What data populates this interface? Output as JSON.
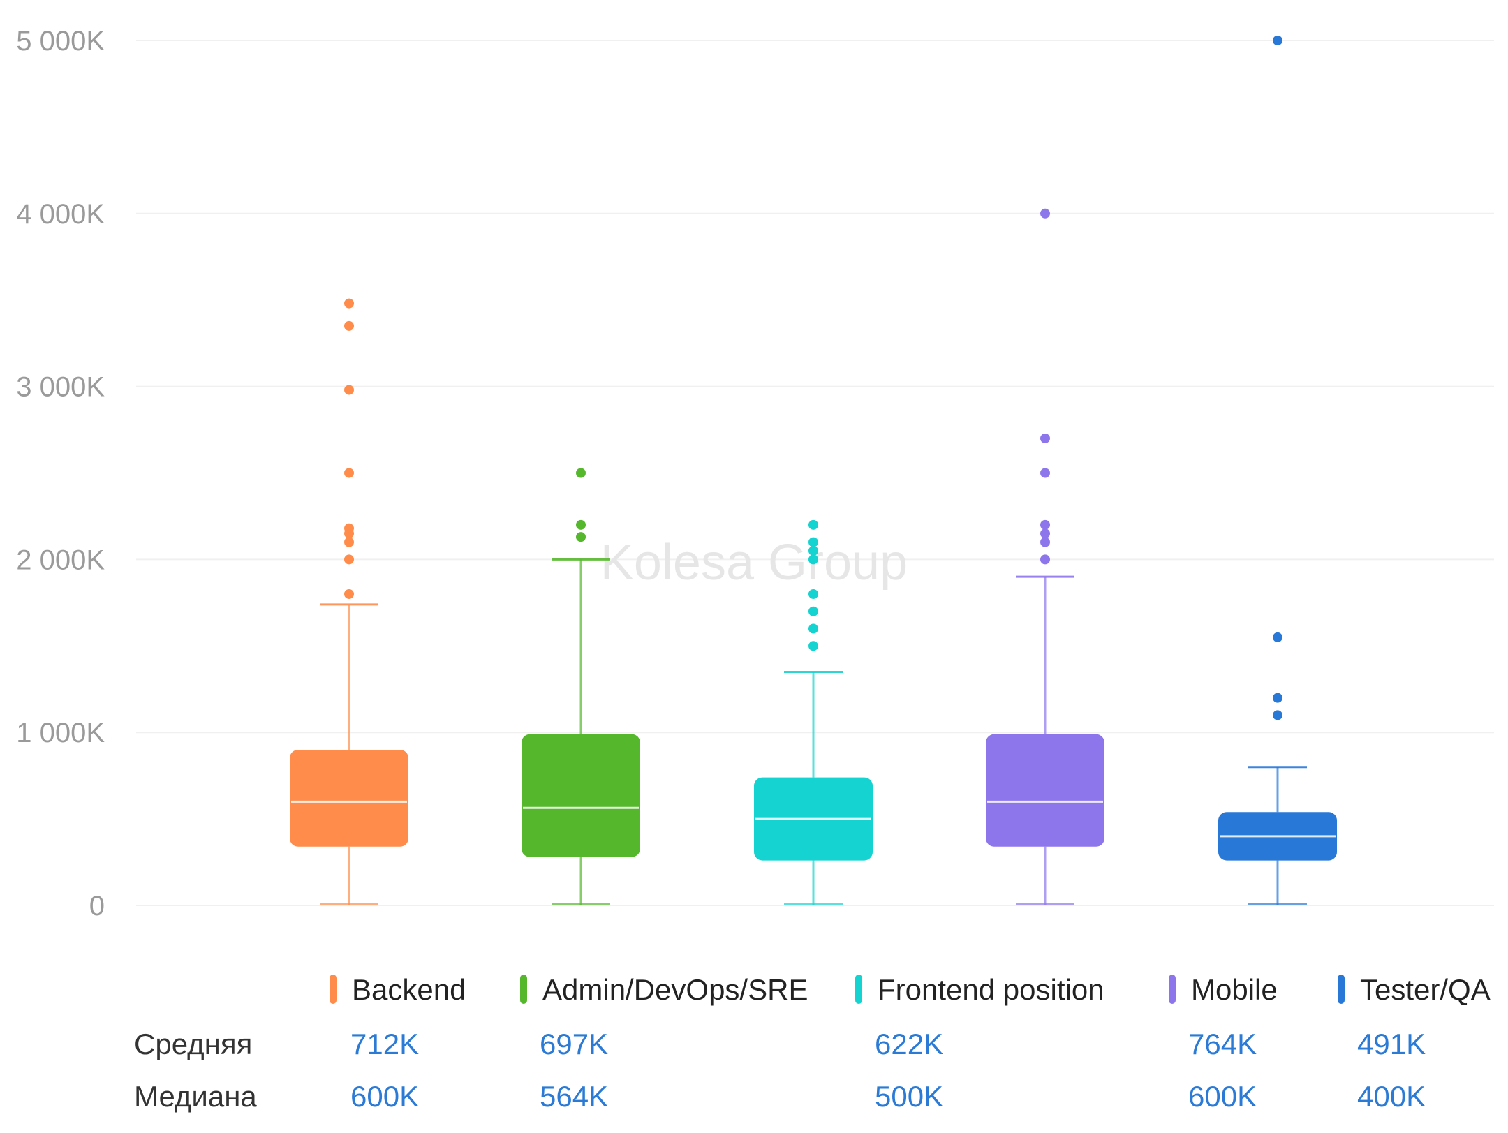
{
  "watermark": "Kolesa Group",
  "chart_data": {
    "type": "boxplot",
    "y_axis": {
      "ticks": [
        0,
        1000,
        2000,
        3000,
        4000,
        5000
      ],
      "tick_labels": [
        "0",
        "1 000K",
        "2 000K",
        "3 000K",
        "4 000K",
        "5 000K"
      ],
      "ylim": [
        0,
        5000
      ],
      "unit": "K"
    },
    "grid": true,
    "legend_position": "bottom",
    "series": [
      {
        "name": "Backend",
        "color": "#ff8c4a",
        "whisker_low": 0,
        "q1": 340,
        "median": 600,
        "q3": 900,
        "whisker_high": 1740,
        "outliers": [
          1800,
          2000,
          2100,
          2150,
          2180,
          2500,
          2980,
          3350,
          3480
        ]
      },
      {
        "name": "Admin/DevOps/SRE",
        "color": "#55b82c",
        "whisker_low": 0,
        "q1": 280,
        "median": 564,
        "q3": 990,
        "whisker_high": 2000,
        "outliers": [
          2130,
          2200,
          2500
        ]
      },
      {
        "name": "Frontend position",
        "color": "#14d3d0",
        "whisker_low": 0,
        "q1": 260,
        "median": 500,
        "q3": 740,
        "whisker_high": 1350,
        "outliers": [
          1500,
          1600,
          1700,
          1800,
          2000,
          2050,
          2100,
          2200
        ]
      },
      {
        "name": "Mobile",
        "color": "#8d76ec",
        "whisker_low": 0,
        "q1": 340,
        "median": 600,
        "q3": 990,
        "whisker_high": 1900,
        "outliers": [
          2000,
          2100,
          2150,
          2200,
          2500,
          2700,
          4000
        ]
      },
      {
        "name": "Tester/QA",
        "color": "#2878d8",
        "whisker_low": 0,
        "q1": 260,
        "median": 400,
        "q3": 540,
        "whisker_high": 800,
        "outliers": [
          1100,
          1200,
          1550,
          5000
        ]
      }
    ]
  },
  "stats": {
    "mean_label": "Средняя",
    "median_label": "Медиана",
    "mean_values": [
      "712K",
      "697K",
      "622K",
      "764K",
      "491K"
    ],
    "median_values": [
      "600K",
      "564K",
      "500K",
      "600K",
      "400K"
    ]
  }
}
